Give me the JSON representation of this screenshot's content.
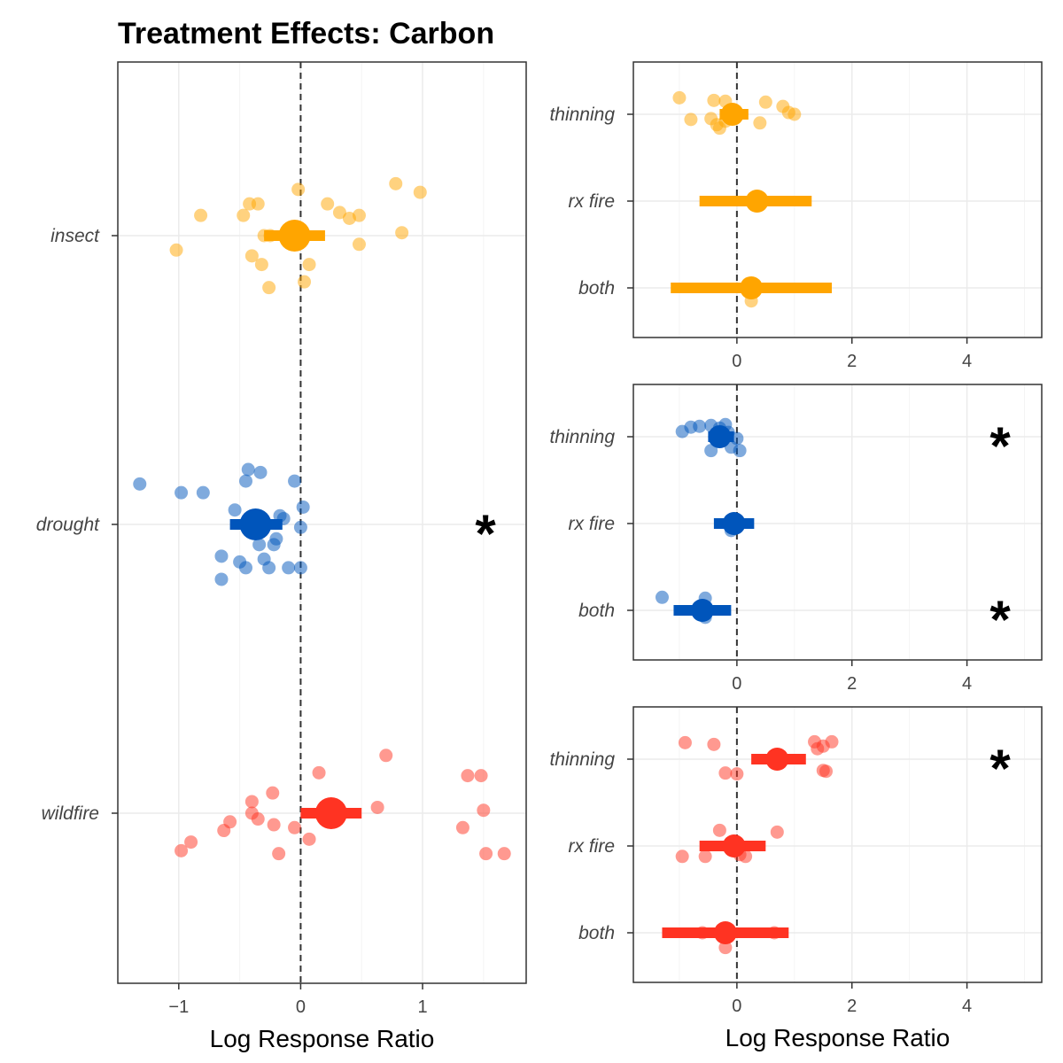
{
  "title": "Treatment Effects: Carbon",
  "colors": {
    "insect": "#FFA500",
    "drought": "#0055BB",
    "wildfire": "#FF3322"
  },
  "chart_data": [
    {
      "type": "scatter",
      "id": "main",
      "xlabel": "Log Response Ratio",
      "xlim": [
        -1.5,
        1.85
      ],
      "xticks": [
        -1,
        0,
        1
      ],
      "xtick_labels": [
        "−1",
        "0",
        "1"
      ],
      "grid": true,
      "reference_line_x": 0,
      "categories": [
        "insect",
        "drought",
        "wildfire"
      ],
      "groups": [
        {
          "name": "insect",
          "color": "#FFA500",
          "mean": -0.05,
          "ci": [
            -0.3,
            0.2
          ],
          "significant": false,
          "points": [
            [
              -1.02,
              -0.05
            ],
            [
              -0.82,
              0.07
            ],
            [
              -0.47,
              0.07
            ],
            [
              -0.42,
              0.11
            ],
            [
              -0.35,
              0.11
            ],
            [
              -0.3,
              0.0
            ],
            [
              -0.25,
              0.0
            ],
            [
              -0.02,
              0.16
            ],
            [
              0.22,
              0.11
            ],
            [
              0.32,
              0.08
            ],
            [
              0.4,
              0.06
            ],
            [
              0.48,
              0.07
            ],
            [
              0.78,
              0.18
            ],
            [
              0.98,
              0.15
            ],
            [
              0.83,
              0.01
            ],
            [
              0.48,
              -0.03
            ],
            [
              -0.4,
              -0.07
            ],
            [
              -0.32,
              -0.1
            ],
            [
              0.07,
              -0.1
            ],
            [
              0.03,
              -0.16
            ],
            [
              -0.26,
              -0.18
            ]
          ]
        },
        {
          "name": "drought",
          "color": "#0055BB",
          "mean": -0.37,
          "ci": [
            -0.58,
            -0.15
          ],
          "significant": true,
          "points": [
            [
              -1.32,
              0.14
            ],
            [
              -0.98,
              0.11
            ],
            [
              -0.8,
              0.11
            ],
            [
              -0.43,
              0.19
            ],
            [
              -0.33,
              0.18
            ],
            [
              -0.45,
              0.15
            ],
            [
              -0.05,
              0.15
            ],
            [
              -0.54,
              0.05
            ],
            [
              0.02,
              0.06
            ],
            [
              -0.17,
              0.03
            ],
            [
              -0.14,
              0.02
            ],
            [
              0.0,
              -0.01
            ],
            [
              -0.2,
              -0.05
            ],
            [
              -0.34,
              -0.07
            ],
            [
              -0.22,
              -0.07
            ],
            [
              -0.65,
              -0.11
            ],
            [
              -0.5,
              -0.13
            ],
            [
              -0.3,
              -0.12
            ],
            [
              -0.45,
              -0.15
            ],
            [
              -0.26,
              -0.15
            ],
            [
              -0.1,
              -0.15
            ],
            [
              0.0,
              -0.15
            ],
            [
              -0.65,
              -0.19
            ]
          ]
        },
        {
          "name": "wildfire",
          "color": "#FF3322",
          "mean": 0.25,
          "ci": [
            0.0,
            0.5
          ],
          "significant": false,
          "points": [
            [
              0.7,
              0.2
            ],
            [
              0.15,
              0.14
            ],
            [
              1.37,
              0.13
            ],
            [
              1.48,
              0.13
            ],
            [
              -0.23,
              0.07
            ],
            [
              -0.4,
              0.04
            ],
            [
              0.63,
              0.02
            ],
            [
              1.5,
              0.01
            ],
            [
              -0.4,
              0.0
            ],
            [
              -0.35,
              -0.02
            ],
            [
              -0.58,
              -0.03
            ],
            [
              -0.22,
              -0.04
            ],
            [
              -0.05,
              -0.05
            ],
            [
              1.33,
              -0.05
            ],
            [
              -0.63,
              -0.06
            ],
            [
              0.07,
              -0.09
            ],
            [
              -0.9,
              -0.1
            ],
            [
              -0.98,
              -0.13
            ],
            [
              -0.18,
              -0.14
            ],
            [
              1.52,
              -0.14
            ],
            [
              1.67,
              -0.14
            ]
          ]
        }
      ]
    },
    {
      "type": "scatter",
      "id": "insect-detail",
      "xlabel": "",
      "xlim": [
        -1.8,
        5.3
      ],
      "xticks": [
        0,
        2,
        4
      ],
      "xtick_labels": [
        "0",
        "2",
        "4"
      ],
      "grid": true,
      "reference_line_x": 0,
      "categories": [
        "thinning",
        "rx fire",
        "both"
      ],
      "groups": [
        {
          "name": "thinning",
          "color": "#FFA500",
          "mean": -0.08,
          "ci": [
            -0.3,
            0.2
          ],
          "significant": false,
          "points": [
            [
              -1.0,
              0.19
            ],
            [
              -0.4,
              0.16
            ],
            [
              -0.2,
              0.15
            ],
            [
              0.5,
              0.14
            ],
            [
              0.8,
              0.09
            ],
            [
              0.9,
              0.02
            ],
            [
              1.0,
              0.0
            ],
            [
              -0.8,
              -0.06
            ],
            [
              -0.45,
              -0.05
            ],
            [
              -0.35,
              -0.12
            ],
            [
              -0.2,
              -0.08
            ],
            [
              0.4,
              -0.1
            ],
            [
              -0.3,
              -0.16
            ]
          ]
        },
        {
          "name": "rx fire",
          "color": "#FFA500",
          "mean": 0.35,
          "ci": [
            -0.65,
            1.3
          ],
          "significant": false,
          "points": [
            [
              0.35,
              0.03
            ],
            [
              0.4,
              -0.02
            ]
          ]
        },
        {
          "name": "both",
          "color": "#FFA500",
          "mean": 0.25,
          "ci": [
            -1.15,
            1.65
          ],
          "significant": false,
          "points": [
            [
              0.25,
              -0.15
            ],
            [
              0.2,
              0.05
            ]
          ]
        }
      ]
    },
    {
      "type": "scatter",
      "id": "drought-detail",
      "xlabel": "",
      "xlim": [
        -1.8,
        5.3
      ],
      "xticks": [
        0,
        2,
        4
      ],
      "xtick_labels": [
        "0",
        "2",
        "4"
      ],
      "grid": true,
      "reference_line_x": 0,
      "categories": [
        "thinning",
        "rx fire",
        "both"
      ],
      "groups": [
        {
          "name": "thinning",
          "color": "#0055BB",
          "mean": -0.3,
          "ci": [
            -0.5,
            -0.05
          ],
          "significant": true,
          "points": [
            [
              -0.95,
              0.06
            ],
            [
              -0.8,
              0.11
            ],
            [
              -0.65,
              0.12
            ],
            [
              -0.45,
              0.13
            ],
            [
              -0.2,
              0.14
            ],
            [
              -0.3,
              0.1
            ],
            [
              -0.15,
              0.05
            ],
            [
              0.0,
              -0.02
            ],
            [
              -0.1,
              -0.12
            ],
            [
              -0.45,
              -0.16
            ],
            [
              0.05,
              -0.16
            ]
          ]
        },
        {
          "name": "rx fire",
          "color": "#0055BB",
          "mean": -0.05,
          "ci": [
            -0.4,
            0.3
          ],
          "significant": false,
          "points": [
            [
              -0.1,
              -0.08
            ],
            [
              0.0,
              0.04
            ],
            [
              -0.15,
              0.0
            ]
          ]
        },
        {
          "name": "both",
          "color": "#0055BB",
          "mean": -0.6,
          "ci": [
            -1.1,
            -0.1
          ],
          "significant": true,
          "points": [
            [
              -1.3,
              0.15
            ],
            [
              -0.55,
              0.14
            ],
            [
              -0.5,
              0.0
            ],
            [
              -0.55,
              -0.08
            ]
          ]
        }
      ]
    },
    {
      "type": "scatter",
      "id": "wildfire-detail",
      "xlabel": "Log Response Ratio",
      "xlim": [
        -1.8,
        5.3
      ],
      "xticks": [
        0,
        2,
        4
      ],
      "xtick_labels": [
        "0",
        "2",
        "4"
      ],
      "grid": true,
      "reference_line_x": 0,
      "categories": [
        "thinning",
        "rx fire",
        "both"
      ],
      "groups": [
        {
          "name": "thinning",
          "color": "#FF3322",
          "mean": 0.7,
          "ci": [
            0.25,
            1.2
          ],
          "significant": true,
          "points": [
            [
              -0.9,
              0.19
            ],
            [
              -0.4,
              0.17
            ],
            [
              1.35,
              0.2
            ],
            [
              1.65,
              0.2
            ],
            [
              1.5,
              0.15
            ],
            [
              1.4,
              0.12
            ],
            [
              -0.2,
              -0.16
            ],
            [
              0.0,
              -0.17
            ],
            [
              1.5,
              -0.13
            ],
            [
              1.55,
              -0.14
            ]
          ]
        },
        {
          "name": "rx fire",
          "color": "#FF3322",
          "mean": -0.05,
          "ci": [
            -0.65,
            0.5
          ],
          "significant": false,
          "points": [
            [
              0.7,
              0.16
            ],
            [
              -0.3,
              0.18
            ],
            [
              -0.55,
              -0.12
            ],
            [
              -0.95,
              -0.12
            ],
            [
              0.15,
              -0.12
            ],
            [
              0.05,
              -0.1
            ]
          ]
        },
        {
          "name": "both",
          "color": "#FF3322",
          "mean": -0.2,
          "ci": [
            -1.3,
            0.9
          ],
          "significant": false,
          "points": [
            [
              -0.6,
              0.0
            ],
            [
              0.65,
              0.0
            ],
            [
              -0.2,
              -0.17
            ]
          ]
        }
      ]
    }
  ]
}
